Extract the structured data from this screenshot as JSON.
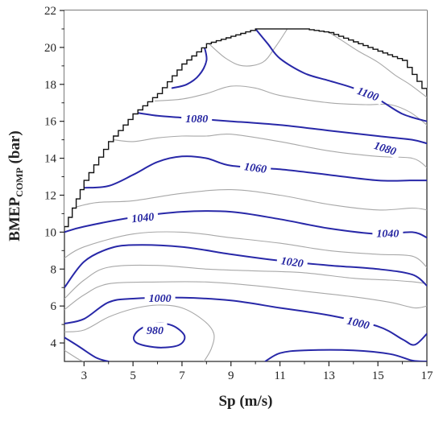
{
  "chart_data": {
    "type": "contour",
    "xlabel": "Sp (m/s)",
    "ylabel_main": "BMEP",
    "ylabel_sub": "COMP",
    "ylabel_unit": " (bar)",
    "xlim": [
      2.2,
      17
    ],
    "ylim": [
      3,
      22
    ],
    "x_ticks": [
      "3",
      "5",
      "7",
      "9",
      "11",
      "13",
      "15",
      "17"
    ],
    "y_ticks": [
      "4",
      "6",
      "8",
      "10",
      "12",
      "14",
      "16",
      "18",
      "20",
      "22"
    ],
    "grid": false,
    "colors": {
      "major_contour": "#2828a8",
      "minor_contour": "#a8a8a8",
      "boundary": "#111111",
      "label": "#2424a0"
    },
    "boundary": [
      [
        2.2,
        10.3
      ],
      [
        3,
        12.8
      ],
      [
        4,
        14.9
      ],
      [
        5,
        16.4
      ],
      [
        6,
        17.5
      ],
      [
        7,
        19.1
      ],
      [
        8,
        20.2
      ],
      [
        9,
        20.6
      ],
      [
        10,
        21
      ],
      [
        12,
        21
      ],
      [
        13,
        20.8
      ],
      [
        14,
        20.3
      ],
      [
        15,
        19.8
      ],
      [
        16,
        19.3
      ],
      [
        17,
        17.4
      ]
    ],
    "contours": [
      {
        "level": "980",
        "major": true,
        "closed": true,
        "points": [
          [
            5.1,
            4.05
          ],
          [
            5.5,
            3.85
          ],
          [
            6.2,
            3.75
          ],
          [
            6.9,
            3.9
          ],
          [
            7.1,
            4.4
          ],
          [
            6.6,
            4.95
          ],
          [
            5.9,
            5.05
          ],
          [
            5.35,
            4.8
          ],
          [
            5.05,
            4.4
          ]
        ]
      },
      {
        "level": "",
        "major": false,
        "closed": false,
        "points": [
          [
            2.2,
            4.6
          ],
          [
            3,
            4.7
          ],
          [
            4,
            5.4
          ],
          [
            5,
            5.85
          ],
          [
            6,
            6.05
          ],
          [
            7,
            5.9
          ],
          [
            7.9,
            5.2
          ],
          [
            8.3,
            4.5
          ],
          [
            8.2,
            3.7
          ],
          [
            7.9,
            3
          ]
        ]
      },
      {
        "level": "",
        "major": false,
        "closed": false,
        "points": [
          [
            2.2,
            3.6
          ],
          [
            2.8,
            3.1
          ],
          [
            3,
            3
          ]
        ]
      },
      {
        "level": "1000",
        "major": true,
        "closed": false,
        "points": [
          [
            2.2,
            5.05
          ],
          [
            3,
            5.3
          ],
          [
            4,
            6.2
          ],
          [
            5,
            6.4
          ],
          [
            7,
            6.45
          ],
          [
            9,
            6.3
          ],
          [
            11,
            5.9
          ],
          [
            13,
            5.5
          ],
          [
            15,
            4.9
          ],
          [
            16,
            4.2
          ],
          [
            16.5,
            3.9
          ],
          [
            17,
            4.5
          ]
        ]
      },
      {
        "level": "",
        "major": true,
        "closed": false,
        "points": [
          [
            2.2,
            4.3
          ],
          [
            2.8,
            3.8
          ],
          [
            3.5,
            3.2
          ],
          [
            4,
            3
          ]
        ]
      },
      {
        "level": "",
        "major": true,
        "closed": false,
        "points": [
          [
            10.4,
            3
          ],
          [
            11,
            3.45
          ],
          [
            12,
            3.6
          ],
          [
            14,
            3.6
          ],
          [
            15.5,
            3.4
          ],
          [
            16.4,
            3.05
          ],
          [
            17,
            3
          ]
        ]
      },
      {
        "level": "",
        "major": false,
        "closed": false,
        "points": [
          [
            2.2,
            5.8
          ],
          [
            3,
            6.6
          ],
          [
            4,
            7.2
          ],
          [
            6,
            7.3
          ],
          [
            8,
            7.3
          ],
          [
            10,
            7.1
          ],
          [
            12,
            6.8
          ],
          [
            14,
            6.5
          ],
          [
            15.5,
            6.2
          ],
          [
            16.5,
            5.9
          ],
          [
            17,
            6
          ]
        ]
      },
      {
        "level": "",
        "major": false,
        "closed": false,
        "points": [
          [
            2.2,
            6.4
          ],
          [
            3,
            7.4
          ],
          [
            4,
            8.1
          ],
          [
            6,
            8.2
          ],
          [
            8,
            8
          ],
          [
            10,
            7.9
          ],
          [
            12,
            7.8
          ],
          [
            14,
            7.5
          ],
          [
            15.5,
            7.4
          ],
          [
            16.5,
            7.3
          ],
          [
            17,
            7.2
          ]
        ]
      },
      {
        "level": "1020",
        "major": true,
        "closed": false,
        "points": [
          [
            2.2,
            7
          ],
          [
            3,
            8.4
          ],
          [
            4,
            9.1
          ],
          [
            5,
            9.3
          ],
          [
            7,
            9.2
          ],
          [
            9,
            8.8
          ],
          [
            11,
            8.45
          ],
          [
            13,
            8.2
          ],
          [
            15,
            8
          ],
          [
            16.4,
            7.7
          ],
          [
            17,
            7.1
          ]
        ]
      },
      {
        "level": "",
        "major": false,
        "closed": false,
        "points": [
          [
            2.2,
            8.6
          ],
          [
            3,
            9.2
          ],
          [
            5,
            9.9
          ],
          [
            7,
            10
          ],
          [
            9,
            9.7
          ],
          [
            11,
            9.4
          ],
          [
            13,
            9
          ],
          [
            15,
            8.8
          ],
          [
            16.4,
            8.7
          ],
          [
            17,
            8.1
          ]
        ]
      },
      {
        "level": "1040",
        "major": true,
        "closed": false,
        "points": [
          [
            2.2,
            10
          ],
          [
            3,
            10.3
          ],
          [
            5,
            10.8
          ],
          [
            7,
            11.1
          ],
          [
            9,
            11.1
          ],
          [
            11,
            10.7
          ],
          [
            13,
            10.2
          ],
          [
            15,
            9.9
          ],
          [
            16.4,
            10
          ],
          [
            17,
            9.7
          ]
        ]
      },
      {
        "level": "",
        "major": false,
        "closed": false,
        "points": [
          [
            2.5,
            11.3
          ],
          [
            3.5,
            11.6
          ],
          [
            5,
            11.7
          ],
          [
            7,
            12.1
          ],
          [
            9,
            12.3
          ],
          [
            11,
            12
          ],
          [
            13,
            11.5
          ],
          [
            15,
            11.2
          ],
          [
            16.4,
            11.3
          ],
          [
            17,
            11.2
          ]
        ]
      },
      {
        "level": "1060",
        "major": true,
        "closed": false,
        "points": [
          [
            3,
            12.4
          ],
          [
            4,
            12.5
          ],
          [
            5,
            13.1
          ],
          [
            6,
            13.8
          ],
          [
            7,
            14.1
          ],
          [
            8,
            14
          ],
          [
            9,
            13.6
          ],
          [
            11,
            13.4
          ],
          [
            13,
            13.1
          ],
          [
            15,
            12.8
          ],
          [
            16.4,
            12.8
          ],
          [
            17,
            12.8
          ]
        ]
      },
      {
        "level": "",
        "major": false,
        "closed": false,
        "points": [
          [
            4.2,
            15
          ],
          [
            5,
            14.9
          ],
          [
            6,
            15.1
          ],
          [
            7,
            15.2
          ],
          [
            8,
            15.2
          ],
          [
            9,
            15.3
          ],
          [
            11,
            14.9
          ],
          [
            13,
            14.4
          ],
          [
            15,
            14.1
          ],
          [
            16.4,
            14
          ],
          [
            17,
            13.5
          ]
        ]
      },
      {
        "level": "1080",
        "major": true,
        "closed": false,
        "points": [
          [
            5,
            16.5
          ],
          [
            6,
            16.3
          ],
          [
            7,
            16.2
          ],
          [
            8,
            16.1
          ],
          [
            9,
            16
          ],
          [
            11,
            15.8
          ],
          [
            13,
            15.5
          ],
          [
            15,
            15.2
          ],
          [
            16.4,
            15
          ],
          [
            17,
            14.8
          ]
        ]
      },
      {
        "level": "",
        "major": false,
        "closed": false,
        "points": [
          [
            5.9,
            17.1
          ],
          [
            7,
            17.2
          ],
          [
            8,
            17.5
          ],
          [
            9,
            17.9
          ],
          [
            10,
            17.8
          ],
          [
            11,
            17.4
          ],
          [
            13,
            17
          ],
          [
            14.5,
            16.9
          ],
          [
            15.5,
            16.9
          ],
          [
            16.3,
            16.5
          ],
          [
            17,
            15.8
          ]
        ]
      },
      {
        "level": "",
        "major": true,
        "closed": false,
        "points": [
          [
            6.6,
            17.8
          ],
          [
            7.2,
            18
          ],
          [
            7.7,
            18.5
          ],
          [
            8,
            19.3
          ],
          [
            7.9,
            20.1
          ]
        ]
      },
      {
        "level": "",
        "major": false,
        "closed": false,
        "points": [
          [
            8.1,
            20.2
          ],
          [
            8.8,
            19.4
          ],
          [
            9.5,
            19
          ],
          [
            10.3,
            19.2
          ],
          [
            10.8,
            20
          ],
          [
            11.3,
            21
          ]
        ]
      },
      {
        "level": "1100",
        "major": true,
        "closed": false,
        "points": [
          [
            10,
            21
          ],
          [
            10.5,
            20.2
          ],
          [
            11,
            19.4
          ],
          [
            12,
            18.6
          ],
          [
            13,
            18.2
          ],
          [
            14,
            17.8
          ],
          [
            15,
            17.2
          ],
          [
            16,
            16.4
          ],
          [
            17,
            16
          ]
        ]
      },
      {
        "level": "",
        "major": false,
        "closed": false,
        "points": [
          [
            12.9,
            20.9
          ],
          [
            13.5,
            20.4
          ],
          [
            14.2,
            19.8
          ],
          [
            15,
            19.2
          ],
          [
            15.7,
            18.5
          ],
          [
            16.3,
            18
          ],
          [
            17,
            17.3
          ]
        ]
      }
    ],
    "labels": [
      {
        "text": "980",
        "x": 5.9,
        "y": 4.7,
        "angle": 0
      },
      {
        "text": "1000",
        "x": 6.1,
        "y": 6.45,
        "angle": 0
      },
      {
        "text": "1000",
        "x": 14.2,
        "y": 5.1,
        "angle": 14
      },
      {
        "text": "1020",
        "x": 11.5,
        "y": 8.4,
        "angle": 8
      },
      {
        "text": "1040",
        "x": 5.4,
        "y": 10.8,
        "angle": -6
      },
      {
        "text": "1040",
        "x": 15.4,
        "y": 9.95,
        "angle": 0
      },
      {
        "text": "1060",
        "x": 10.0,
        "y": 13.5,
        "angle": 8
      },
      {
        "text": "1080",
        "x": 7.6,
        "y": 16.15,
        "angle": 0
      },
      {
        "text": "1080",
        "x": 15.3,
        "y": 14.55,
        "angle": 18
      },
      {
        "text": "1100",
        "x": 14.6,
        "y": 17.5,
        "angle": 20
      }
    ]
  }
}
